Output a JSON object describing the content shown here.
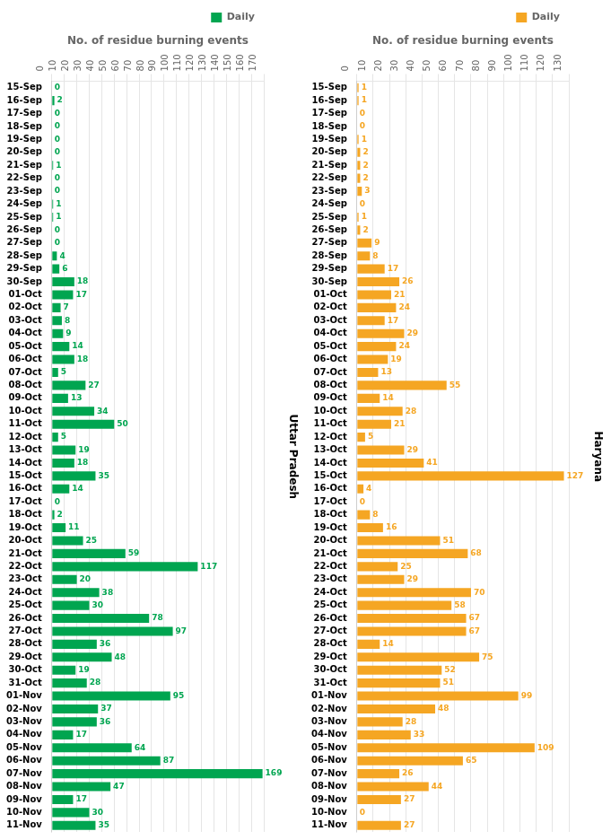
{
  "chart_data": [
    {
      "type": "bar",
      "orientation": "horizontal",
      "x_label": "No. of residue burning events",
      "annotation": "Uttar Pradesh",
      "categories": [
        "15-Sep",
        "16-Sep",
        "17-Sep",
        "18-Sep",
        "19-Sep",
        "20-Sep",
        "21-Sep",
        "22-Sep",
        "23-Sep",
        "24-Sep",
        "25-Sep",
        "26-Sep",
        "27-Sep",
        "28-Sep",
        "29-Sep",
        "30-Sep",
        "01-Oct",
        "02-Oct",
        "03-Oct",
        "04-Oct",
        "05-Oct",
        "06-Oct",
        "07-Oct",
        "08-Oct",
        "09-Oct",
        "10-Oct",
        "11-Oct",
        "12-Oct",
        "13-Oct",
        "14-Oct",
        "15-Oct",
        "16-Oct",
        "17-Oct",
        "18-Oct",
        "19-Oct",
        "20-Oct",
        "21-Oct",
        "22-Oct",
        "23-Oct",
        "24-Oct",
        "25-Oct",
        "26-Oct",
        "27-Oct",
        "28-Oct",
        "29-Oct",
        "30-Oct",
        "31-Oct",
        "01-Nov",
        "02-Nov",
        "03-Nov",
        "04-Nov",
        "05-Nov",
        "06-Nov",
        "07-Nov",
        "08-Nov",
        "09-Nov",
        "10-Nov",
        "11-Nov"
      ],
      "series": [
        {
          "name": "Daily",
          "color": "#00a550",
          "values": [
            0,
            2,
            0,
            0,
            0,
            0,
            1,
            0,
            0,
            1,
            1,
            0,
            0,
            4,
            6,
            18,
            17,
            7,
            8,
            9,
            14,
            18,
            5,
            27,
            13,
            34,
            50,
            5,
            19,
            18,
            35,
            14,
            0,
            2,
            11,
            25,
            59,
            117,
            20,
            38,
            30,
            78,
            97,
            36,
            48,
            19,
            28,
            95,
            37,
            36,
            17,
            64,
            87,
            169,
            47,
            17,
            30,
            35
          ]
        }
      ],
      "xlim": [
        0,
        170
      ],
      "xticks": [
        0,
        10,
        20,
        30,
        40,
        50,
        60,
        70,
        80,
        90,
        100,
        110,
        120,
        130,
        140,
        150,
        160,
        170
      ],
      "grid": true,
      "legend": "upper right",
      "data_labels": true
    },
    {
      "type": "bar",
      "orientation": "horizontal",
      "x_label": "No. of residue burning events",
      "annotation": "Haryana",
      "categories": [
        "15-Sep",
        "16-Sep",
        "17-Sep",
        "18-Sep",
        "19-Sep",
        "20-Sep",
        "21-Sep",
        "22-Sep",
        "23-Sep",
        "24-Sep",
        "25-Sep",
        "26-Sep",
        "27-Sep",
        "28-Sep",
        "29-Sep",
        "30-Sep",
        "01-Oct",
        "02-Oct",
        "03-Oct",
        "04-Oct",
        "05-Oct",
        "06-Oct",
        "07-Oct",
        "08-Oct",
        "09-Oct",
        "10-Oct",
        "11-Oct",
        "12-Oct",
        "13-Oct",
        "14-Oct",
        "15-Oct",
        "16-Oct",
        "17-Oct",
        "18-Oct",
        "19-Oct",
        "20-Oct",
        "21-Oct",
        "22-Oct",
        "23-Oct",
        "24-Oct",
        "25-Oct",
        "26-Oct",
        "27-Oct",
        "28-Oct",
        "29-Oct",
        "30-Oct",
        "31-Oct",
        "01-Nov",
        "02-Nov",
        "03-Nov",
        "04-Nov",
        "05-Nov",
        "06-Nov",
        "07-Nov",
        "08-Nov",
        "09-Nov",
        "10-Nov",
        "11-Nov"
      ],
      "series": [
        {
          "name": "Daily",
          "color": "#f5a623",
          "values": [
            1,
            1,
            0,
            0,
            1,
            2,
            2,
            2,
            3,
            0,
            1,
            2,
            9,
            8,
            17,
            26,
            21,
            24,
            17,
            29,
            24,
            19,
            13,
            55,
            14,
            28,
            21,
            5,
            29,
            41,
            127,
            4,
            0,
            8,
            16,
            51,
            68,
            25,
            29,
            70,
            58,
            67,
            67,
            14,
            75,
            52,
            51,
            99,
            48,
            28,
            33,
            109,
            65,
            26,
            44,
            27,
            0,
            27
          ]
        }
      ],
      "xlim": [
        0,
        130
      ],
      "xticks": [
        0,
        10,
        20,
        30,
        40,
        50,
        60,
        70,
        80,
        90,
        100,
        110,
        120,
        130
      ],
      "grid": true,
      "legend": "upper right",
      "data_labels": true
    }
  ]
}
